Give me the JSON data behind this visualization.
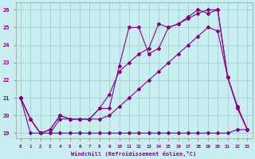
{
  "background_color": "#c8eef0",
  "line_color": "#880088",
  "xlabel": "Windchill (Refroidissement éolien,°C)",
  "xlim": [
    -0.5,
    23.5
  ],
  "ylim": [
    18.7,
    26.4
  ],
  "yticks": [
    19,
    20,
    21,
    22,
    23,
    24,
    25,
    26
  ],
  "xticks": [
    0,
    1,
    2,
    3,
    4,
    5,
    6,
    7,
    8,
    9,
    10,
    11,
    12,
    13,
    14,
    15,
    16,
    17,
    18,
    19,
    20,
    21,
    22,
    23
  ],
  "line1_x": [
    0,
    1,
    2,
    3,
    4,
    5,
    6,
    7,
    8,
    9,
    10,
    11,
    12,
    13,
    14,
    15,
    16,
    17,
    18,
    19,
    20,
    21,
    22,
    23
  ],
  "line1_y": [
    21.0,
    19.0,
    19.0,
    19.0,
    19.0,
    19.0,
    19.0,
    19.0,
    19.0,
    19.0,
    19.0,
    19.0,
    19.0,
    19.0,
    19.0,
    19.0,
    19.0,
    19.0,
    19.0,
    19.0,
    19.0,
    19.0,
    19.2,
    19.2
  ],
  "line2_x": [
    0,
    1,
    2,
    3,
    4,
    5,
    6,
    7,
    8,
    9,
    10,
    11,
    12,
    13,
    14,
    15,
    16,
    17,
    18,
    19,
    20,
    21,
    22,
    23
  ],
  "line2_y": [
    21.0,
    19.8,
    19.0,
    19.0,
    19.8,
    19.8,
    19.8,
    19.8,
    19.8,
    20.0,
    20.5,
    21.0,
    21.5,
    22.0,
    22.5,
    23.0,
    23.5,
    24.0,
    24.5,
    25.0,
    24.8,
    22.2,
    20.4,
    19.2
  ],
  "line3_x": [
    0,
    1,
    2,
    3,
    4,
    5,
    6,
    7,
    8,
    9,
    10,
    11,
    12,
    13,
    14,
    15,
    16,
    17,
    18,
    19,
    20,
    21,
    22,
    23
  ],
  "line3_y": [
    21.0,
    19.8,
    19.0,
    19.2,
    20.0,
    19.8,
    19.8,
    19.8,
    20.4,
    21.2,
    22.5,
    23.0,
    23.5,
    23.8,
    25.2,
    25.0,
    25.2,
    25.5,
    25.8,
    26.0,
    26.0,
    22.2,
    20.5,
    19.2
  ],
  "line4_x": [
    0,
    1,
    2,
    3,
    4,
    5,
    6,
    7,
    8,
    9,
    10,
    11,
    12,
    13,
    14,
    15,
    16,
    17,
    18,
    19,
    20,
    21,
    22,
    23
  ],
  "line4_y": [
    21.0,
    19.8,
    19.0,
    19.2,
    20.0,
    19.8,
    19.8,
    19.8,
    20.4,
    20.4,
    22.8,
    25.0,
    25.0,
    23.5,
    23.8,
    25.0,
    25.2,
    25.6,
    26.0,
    25.8,
    26.0,
    22.2,
    20.5,
    19.2
  ]
}
